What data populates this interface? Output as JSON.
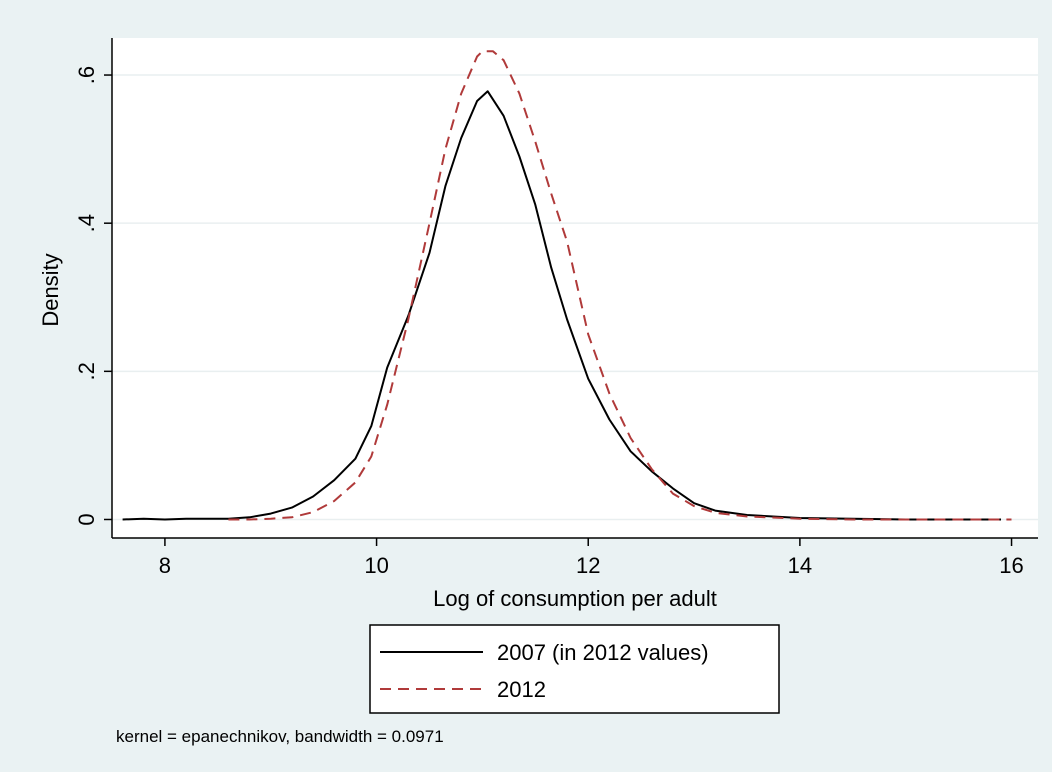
{
  "chart_data": {
    "type": "line",
    "title": "",
    "xlabel": "Log of consumption per adult",
    "ylabel": "Density",
    "xlim": [
      7.5,
      16.25
    ],
    "ylim": [
      -0.025,
      0.65
    ],
    "x_ticks": [
      8,
      10,
      12,
      14,
      16
    ],
    "x_tick_labels": [
      "8",
      "10",
      "12",
      "14",
      "16"
    ],
    "y_ticks": [
      0,
      0.2,
      0.4,
      0.6
    ],
    "y_tick_labels": [
      "0",
      ".2",
      ".4",
      ".6"
    ],
    "grid": "horizontal",
    "legend_position": "bottom",
    "note": "kernel = epanechnikov, bandwidth = 0.0971",
    "series": [
      {
        "name": "2007 (in 2012 values)",
        "color": "#000000",
        "dash": "solid",
        "x": [
          7.6,
          7.8,
          8.0,
          8.2,
          8.4,
          8.6,
          8.8,
          9.0,
          9.2,
          9.4,
          9.6,
          9.8,
          9.95,
          10.1,
          10.3,
          10.5,
          10.65,
          10.8,
          10.95,
          11.05,
          11.2,
          11.35,
          11.5,
          11.65,
          11.8,
          12.0,
          12.2,
          12.4,
          12.6,
          12.8,
          13.0,
          13.2,
          13.5,
          14.0,
          14.5,
          15.0,
          15.5,
          15.9
        ],
        "y": [
          0.0,
          0.001,
          0.0,
          0.001,
          0.001,
          0.001,
          0.003,
          0.008,
          0.016,
          0.031,
          0.053,
          0.082,
          0.126,
          0.205,
          0.275,
          0.36,
          0.45,
          0.515,
          0.565,
          0.578,
          0.545,
          0.49,
          0.425,
          0.34,
          0.27,
          0.19,
          0.135,
          0.092,
          0.065,
          0.042,
          0.022,
          0.012,
          0.006,
          0.002,
          0.001,
          0.0,
          0.0,
          0.0
        ]
      },
      {
        "name": "2012",
        "color": "#b03a3a",
        "dash": "dashed",
        "x": [
          8.6,
          8.8,
          9.0,
          9.2,
          9.4,
          9.6,
          9.8,
          9.95,
          10.1,
          10.3,
          10.5,
          10.65,
          10.8,
          10.95,
          11.0,
          11.1,
          11.2,
          11.35,
          11.5,
          11.65,
          11.8,
          12.0,
          12.2,
          12.4,
          12.6,
          12.8,
          13.0,
          13.2,
          13.5,
          14.0,
          14.5,
          15.0,
          15.5,
          16.0
        ],
        "y": [
          0.0,
          0.0,
          0.001,
          0.003,
          0.01,
          0.025,
          0.05,
          0.085,
          0.155,
          0.27,
          0.4,
          0.5,
          0.575,
          0.625,
          0.632,
          0.632,
          0.62,
          0.575,
          0.51,
          0.44,
          0.375,
          0.25,
          0.17,
          0.11,
          0.068,
          0.035,
          0.018,
          0.009,
          0.004,
          0.001,
          0.0,
          0.0,
          0.0,
          0.0
        ]
      }
    ]
  }
}
